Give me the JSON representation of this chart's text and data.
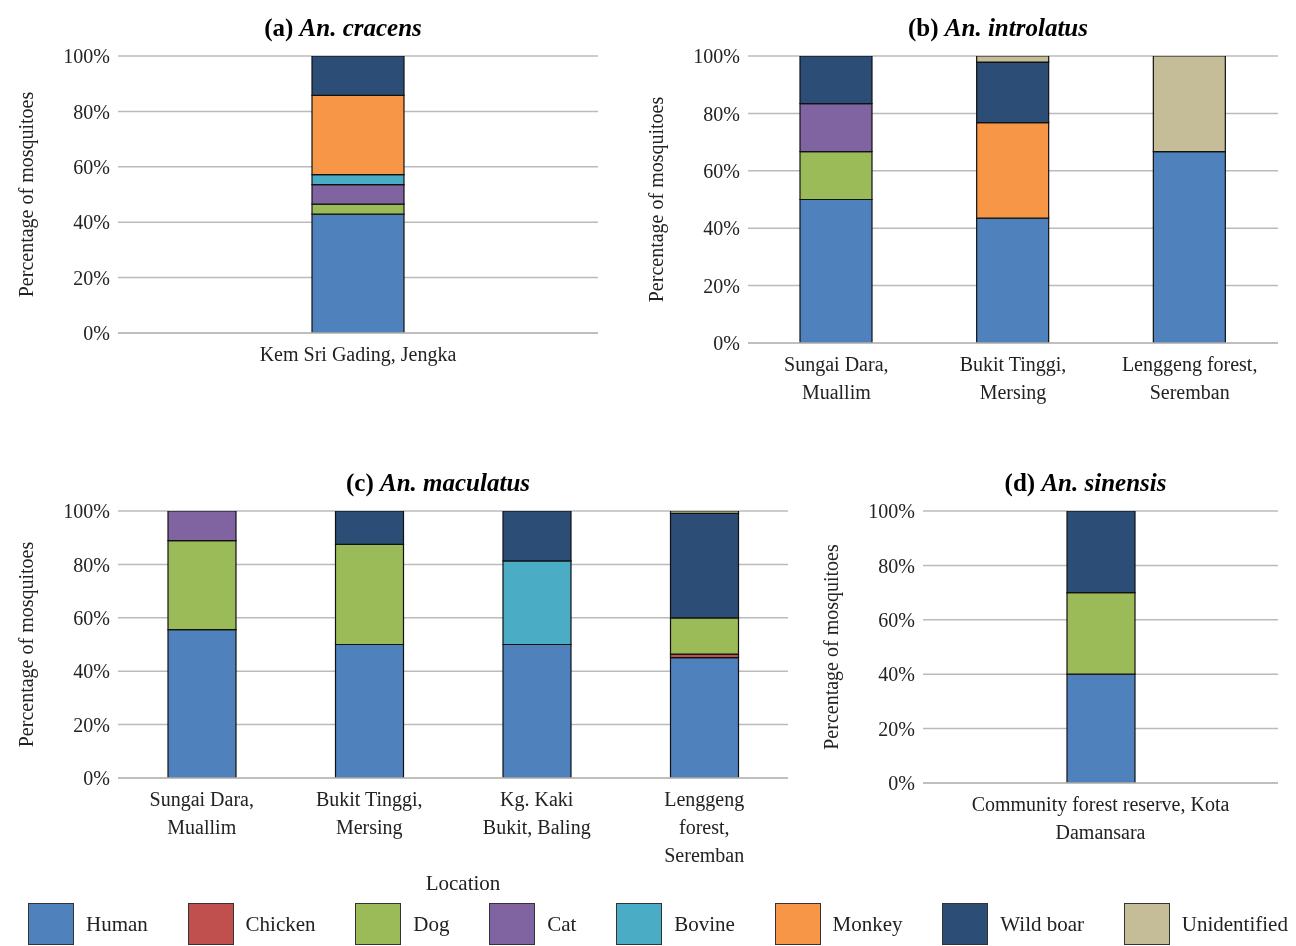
{
  "chart_data": [
    {
      "type": "bar",
      "stacked": true,
      "title": "(a) An. cracens",
      "ylabel": "Percentage of mosquitoes",
      "categories": [
        "Kem Sri Gading, Jengka"
      ],
      "ylim": [
        0,
        100
      ],
      "yticks": [
        {
          "value": 0,
          "label": "0%"
        },
        {
          "value": 20,
          "label": "20%"
        },
        {
          "value": 40,
          "label": "40%"
        },
        {
          "value": 60,
          "label": "60%"
        },
        {
          "value": 80,
          "label": "80%"
        },
        {
          "value": 100,
          "label": "100%"
        }
      ],
      "grid": "y",
      "series": [
        {
          "color": "#4f81bd",
          "values": [
            42.9
          ]
        },
        {
          "color": "#9bbb59",
          "values": [
            3.6
          ]
        },
        {
          "color": "#8064a2",
          "values": [
            7.1
          ]
        },
        {
          "color": "#4bacc6",
          "values": [
            3.6
          ]
        },
        {
          "color": "#f79646",
          "values": [
            28.6
          ]
        },
        {
          "color": "#2c4d75",
          "values": [
            14.3
          ]
        }
      ]
    },
    {
      "type": "bar",
      "stacked": true,
      "title": "(b) An. introlatus",
      "ylabel": "Percentage of mosquitoes",
      "categories": [
        "Sungai Dara, Muallim",
        "Bukit Tinggi, Mersing",
        "Lenggeng forest, Seremban"
      ],
      "ylim": [
        0,
        100
      ],
      "yticks": [
        {
          "value": 0,
          "label": "0%"
        },
        {
          "value": 20,
          "label": "20%"
        },
        {
          "value": 40,
          "label": "40%"
        },
        {
          "value": 60,
          "label": "60%"
        },
        {
          "value": 80,
          "label": "80%"
        },
        {
          "value": 100,
          "label": "100%"
        }
      ],
      "grid": "y",
      "series": [
        {
          "color": "#4f81bd",
          "values": [
            50,
            43.5,
            66.7
          ]
        },
        {
          "color": "#9bbb59",
          "values": [
            16.7,
            null,
            null
          ]
        },
        {
          "color": "#8064a2",
          "values": [
            16.7,
            null,
            null
          ]
        },
        {
          "color": "#f79646",
          "values": [
            null,
            33.3,
            null
          ]
        },
        {
          "color": "#2c4d75",
          "values": [
            16.7,
            21.1,
            null
          ]
        },
        {
          "color": "#c4bd97",
          "values": [
            null,
            2.1,
            33.3
          ]
        }
      ]
    },
    {
      "type": "bar",
      "stacked": true,
      "title": "(c) An. maculatus",
      "ylabel": "Percentage of mosquitoes",
      "xlabel": "Location",
      "legend": "bottom",
      "categories": [
        "Sungai Dara, Muallim",
        "Bukit Tinggi, Mersing",
        "Kg. Kaki Bukit, Baling",
        "Lenggeng forest, Seremban"
      ],
      "ylim": [
        0,
        100
      ],
      "yticks": [
        {
          "value": 0,
          "label": "0%"
        },
        {
          "value": 20,
          "label": "20%"
        },
        {
          "value": 40,
          "label": "40%"
        },
        {
          "value": 60,
          "label": "60%"
        },
        {
          "value": 80,
          "label": "80%"
        },
        {
          "value": 100,
          "label": "100%"
        }
      ],
      "grid": "y",
      "series": [
        {
          "name": "Human",
          "color": "#4f81bd",
          "values": [
            55.6,
            50,
            50,
            45.1
          ]
        },
        {
          "name": "Chicken",
          "color": "#c0504d",
          "values": [
            null,
            null,
            null,
            1.3
          ]
        },
        {
          "name": "Dog",
          "color": "#9bbb59",
          "values": [
            33.3,
            37.5,
            null,
            13.6
          ]
        },
        {
          "name": "Cat",
          "color": "#8064a2",
          "values": [
            11.1,
            null,
            null,
            null
          ]
        },
        {
          "name": "Bovine",
          "color": "#4bacc6",
          "values": [
            null,
            null,
            31.3,
            null
          ]
        },
        {
          "name": "Monkey",
          "color": "#f79646",
          "values": [
            null,
            null,
            null,
            null
          ]
        },
        {
          "name": "Wild boar",
          "color": "#2c4d75",
          "values": [
            null,
            12.5,
            18.8,
            39.1
          ]
        },
        {
          "name": "Unidentified",
          "color": "#c4bd97",
          "values": [
            null,
            null,
            null,
            0.9
          ]
        }
      ]
    },
    {
      "type": "bar",
      "stacked": true,
      "title": "(d) An. sinensis",
      "ylabel": "Percentage of mosquitoes",
      "categories": [
        "Community forest reserve, Kota Damansara"
      ],
      "ylim": [
        0,
        100
      ],
      "yticks": [
        {
          "value": 0,
          "label": "0%"
        },
        {
          "value": 20,
          "label": "20%"
        },
        {
          "value": 40,
          "label": "40%"
        },
        {
          "value": 60,
          "label": "60%"
        },
        {
          "value": 80,
          "label": "80%"
        },
        {
          "value": 100,
          "label": "100%"
        }
      ],
      "grid": "y",
      "series": [
        {
          "color": "#4f81bd",
          "values": [
            40
          ]
        },
        {
          "color": "#9bbb59",
          "values": [
            30
          ]
        },
        {
          "color": "#2c4d75",
          "values": [
            30
          ]
        }
      ]
    }
  ]
}
